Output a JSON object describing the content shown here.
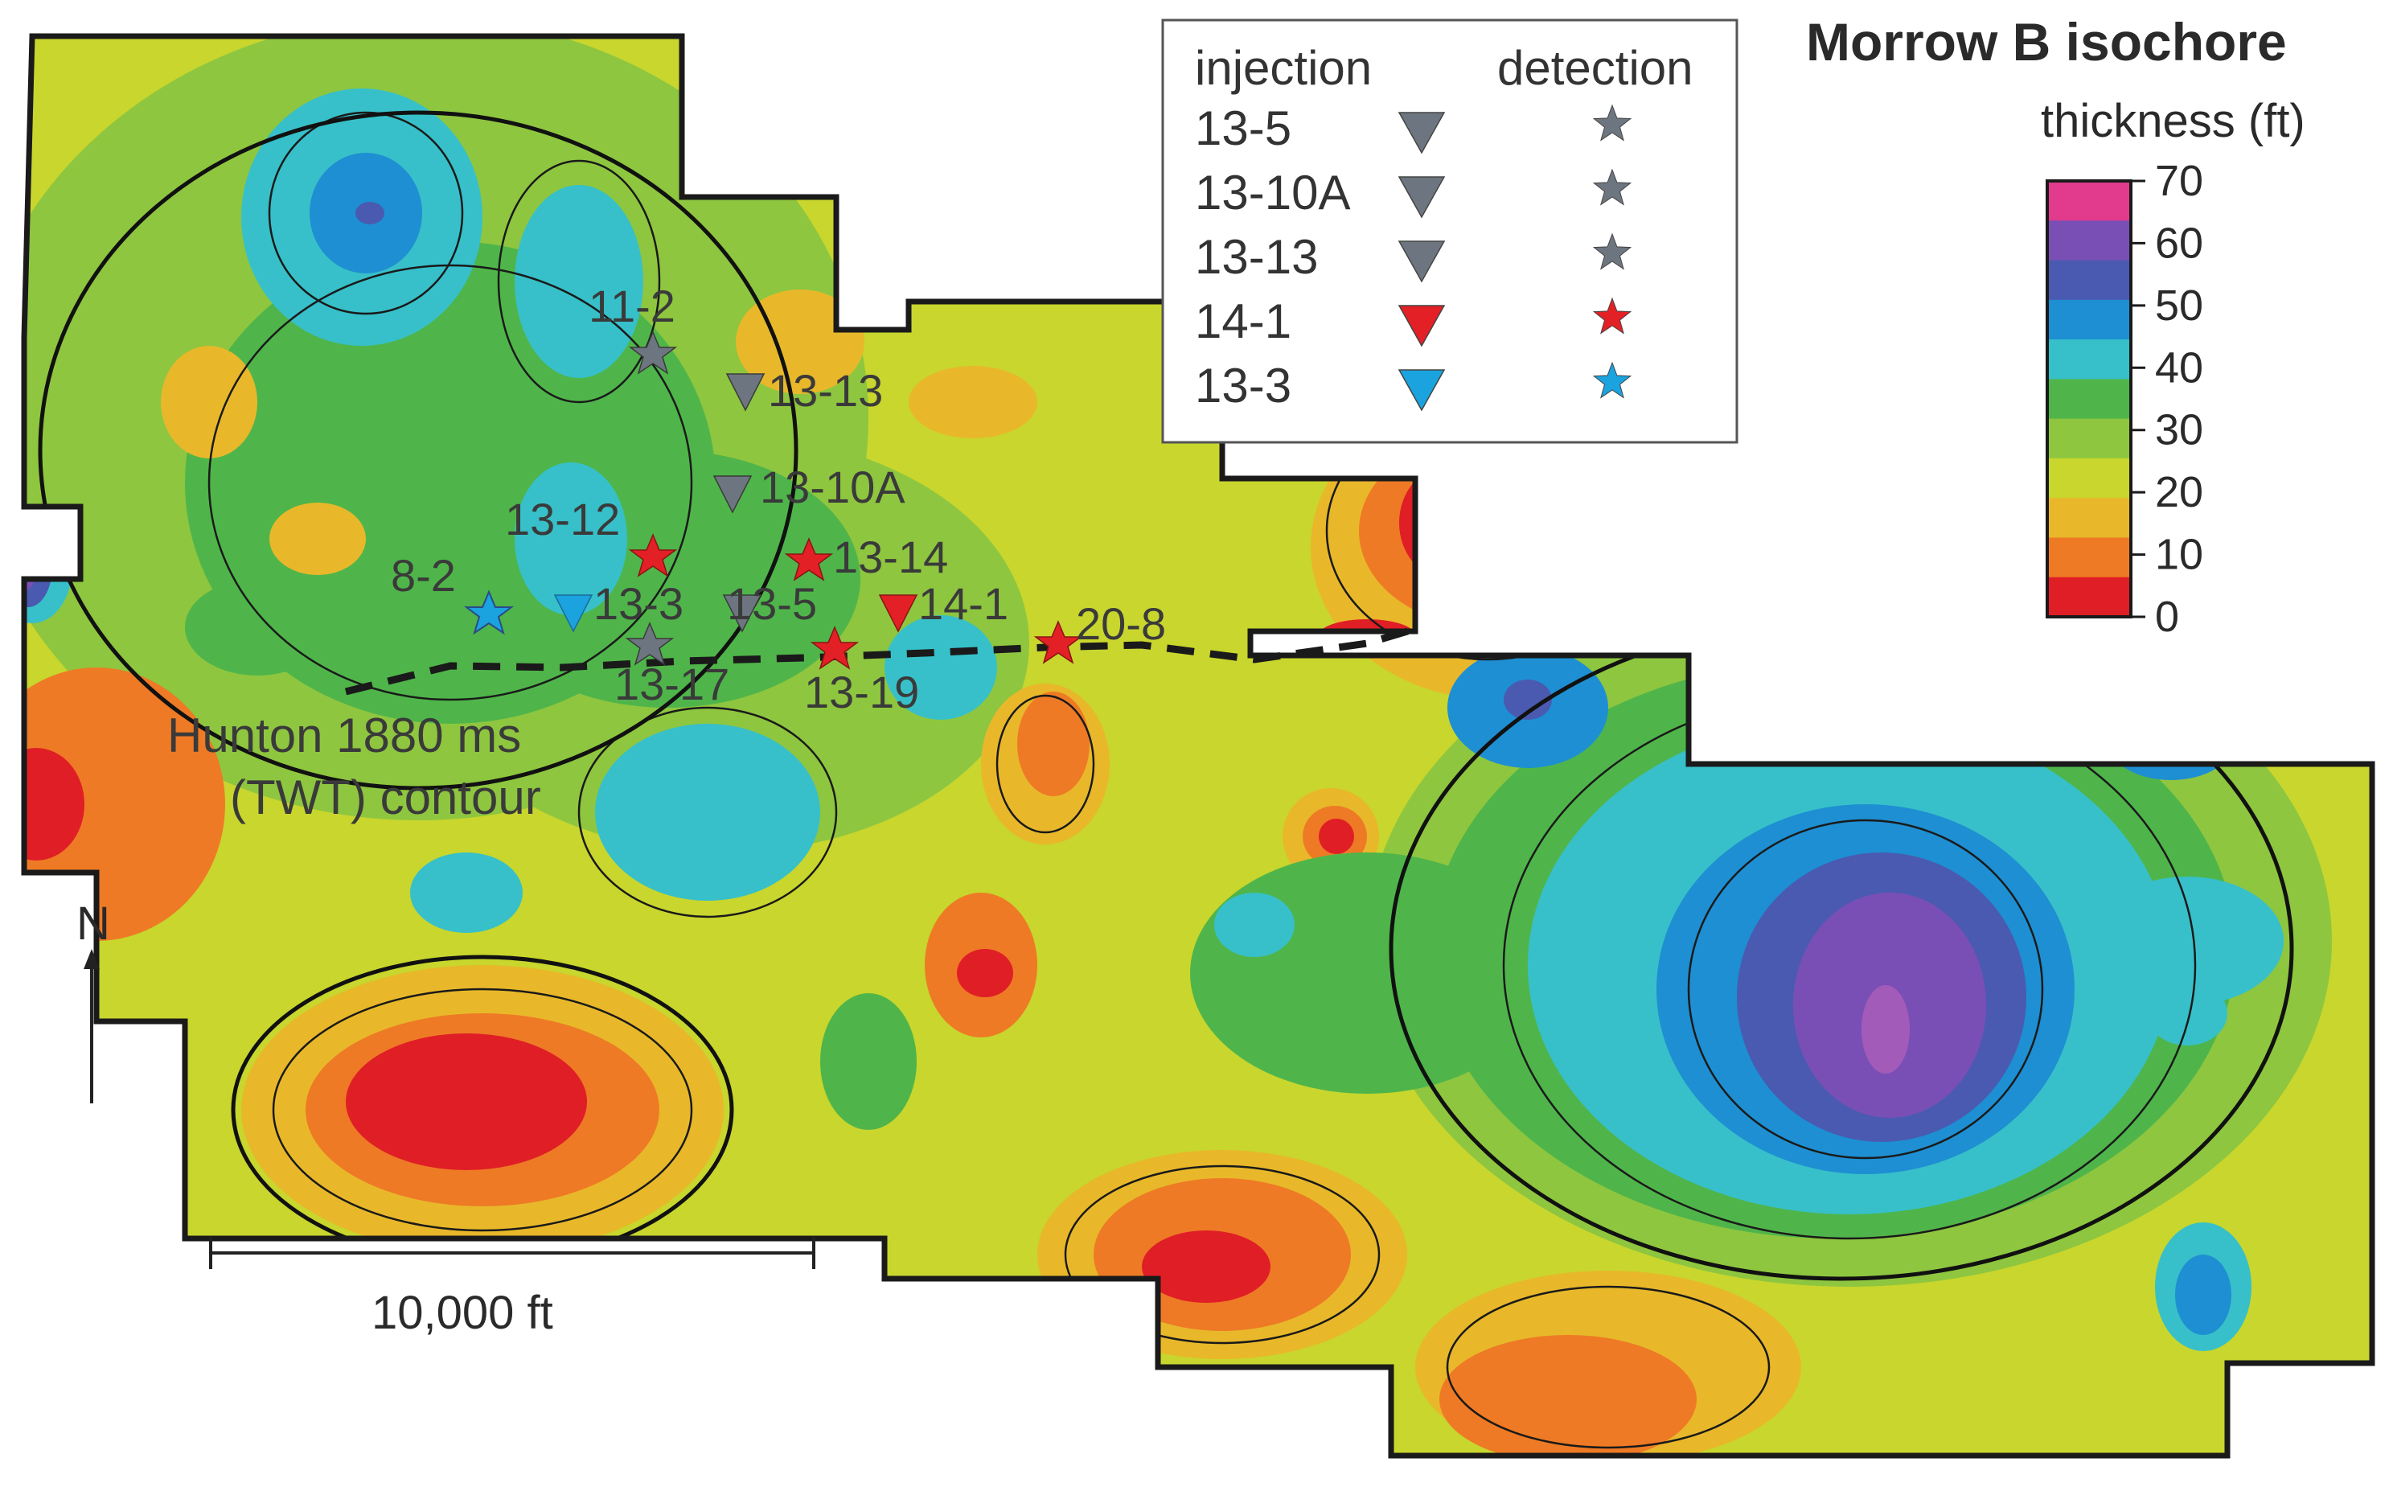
{
  "title": "Morrow B isochore",
  "colorbar": {
    "label": "thickness (ft)",
    "ticks": [
      "70",
      "60",
      "50",
      "40",
      "30",
      "20",
      "10",
      "0"
    ],
    "colors": [
      "#e23a8c",
      "#7a4fb5",
      "#4a5ab0",
      "#1e8fd2",
      "#37c0c9",
      "#4fb54a",
      "#8ec63f",
      "#c8d62d",
      "#e8b82a",
      "#ee7a25",
      "#e01e26"
    ]
  },
  "legend": {
    "col_injection": "injection",
    "col_detection": "detection",
    "rows": [
      {
        "label": "13-5",
        "color": "#6d7680"
      },
      {
        "label": "13-10A",
        "color": "#6d7680"
      },
      {
        "label": "13-13",
        "color": "#6d7680"
      },
      {
        "label": "14-1",
        "color": "#e32026"
      },
      {
        "label": "13-3",
        "color": "#1aa3de"
      }
    ]
  },
  "wells": {
    "w11_2": "11-2",
    "w13_13": "13-13",
    "w13_10a": "13-10A",
    "w13_12": "13-12",
    "w13_14": "13-14",
    "w8_2": "8-2",
    "w13_3": "13-3",
    "w13_5": "13-5",
    "w14_1": "14-1",
    "w20_8": "20-8",
    "w13_17": "13-17",
    "w13_19": "13-19"
  },
  "annotation": {
    "line1": "Hunton 1880 ms",
    "line2": "(TWT) contour"
  },
  "north": "N",
  "scale_bar": "10,000 ft"
}
